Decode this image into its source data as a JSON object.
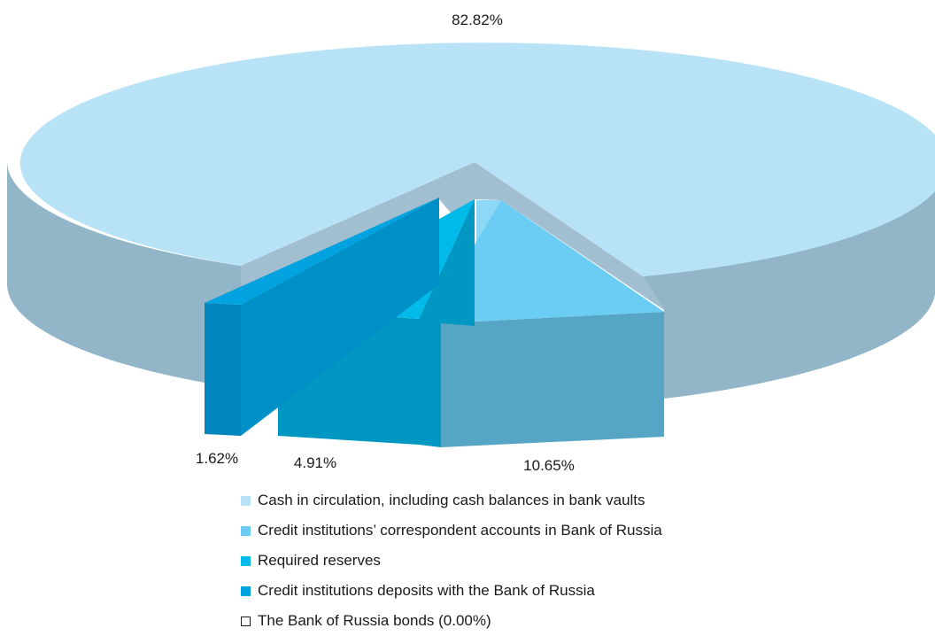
{
  "chart_data": {
    "type": "pie",
    "title": "",
    "slices": [
      {
        "label": "Cash in circulation, including cash balances in bank vaults",
        "value": 82.82,
        "display": "82.82%",
        "color": "#b8e3f7",
        "side_color": "#93b5c8"
      },
      {
        "label": "Credit institutions’ correspondent accounts in Bank of Russia",
        "value": 10.65,
        "display": "10.65%",
        "color": "#6bcdf4",
        "side_color": "#57a5c4"
      },
      {
        "label": "Required reserves",
        "value": 4.91,
        "display": "4.91%",
        "color": "#00bbea",
        "side_color": "#0098c2"
      },
      {
        "label": "Credit institutions deposits with the Bank of Russia",
        "value": 1.62,
        "display": "1.62%",
        "color": "#00a3e0",
        "side_color": "#0086bc"
      },
      {
        "label": "The Bank of Russia  bonds (0.00%)",
        "value": 0.0,
        "display": "",
        "color": "#ffffff",
        "side_color": "#ffffff"
      }
    ],
    "legend_position": "bottom"
  }
}
